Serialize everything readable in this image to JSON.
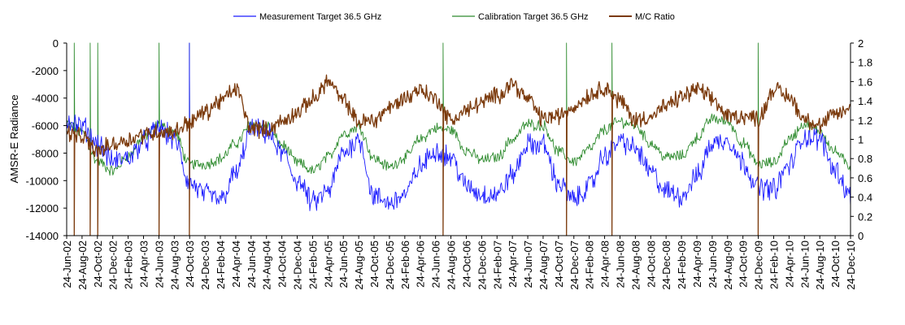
{
  "chart_data": {
    "type": "line",
    "title": "",
    "ylabel": "AMSR-E Radiance",
    "y2label": "",
    "ylim": [
      -14000,
      0
    ],
    "y2lim": [
      0,
      2
    ],
    "yticks": [
      "0",
      "-2000",
      "-4000",
      "-6000",
      "-8000",
      "-10000",
      "-12000",
      "-14000"
    ],
    "y2ticks": [
      "2",
      "1.8",
      "1.6",
      "1.4",
      "1.2",
      "1",
      "0.8",
      "0.6",
      "0.4",
      "0.2",
      "0"
    ],
    "xlim": [
      "2002-06-24",
      "2010-12-24"
    ],
    "xticks": [
      "24-Jun-02",
      "24-Aug-02",
      "24-Oct-02",
      "24-Dec-02",
      "24-Feb-03",
      "24-Apr-03",
      "24-Jun-03",
      "24-Aug-03",
      "24-Oct-03",
      "24-Dec-03",
      "24-Feb-04",
      "24-Apr-04",
      "24-Jun-04",
      "24-Aug-04",
      "24-Oct-04",
      "24-Dec-04",
      "24-Feb-05",
      "24-Apr-05",
      "24-Jun-05",
      "24-Aug-05",
      "24-Oct-05",
      "24-Dec-05",
      "24-Feb-06",
      "24-Apr-06",
      "24-Jun-06",
      "24-Aug-06",
      "24-Oct-06",
      "24-Dec-06",
      "24-Feb-07",
      "24-Apr-07",
      "24-Jun-07",
      "24-Aug-07",
      "24-Oct-07",
      "24-Dec-07",
      "24-Feb-08",
      "24-Apr-08",
      "24-Jun-08",
      "24-Aug-08",
      "24-Oct-08",
      "24-Dec-08",
      "24-Feb-09",
      "24-Apr-09",
      "24-Jun-09",
      "24-Aug-09",
      "24-Oct-09",
      "24-Dec-09",
      "24-Feb-10",
      "24-Apr-10",
      "24-Jun-10",
      "24-Aug-10",
      "24-Oct-10",
      "24-Dec-10"
    ],
    "legend_position": "top-center",
    "series": [
      {
        "name": "Measurement Target 36.5 GHz",
        "axis": "left",
        "color": "#1a1aff",
        "x": [
          "2002-06-24",
          "2002-08-24",
          "2002-10-24",
          "2002-12-24",
          "2003-02-24",
          "2003-04-24",
          "2003-06-24",
          "2003-08-24",
          "2003-10-24",
          "2003-12-24",
          "2004-02-24",
          "2004-04-24",
          "2004-06-24",
          "2004-08-24",
          "2004-10-24",
          "2004-12-24",
          "2005-02-24",
          "2005-04-24",
          "2005-06-24",
          "2005-08-24",
          "2005-10-24",
          "2005-12-24",
          "2006-02-24",
          "2006-04-24",
          "2006-06-24",
          "2006-08-24",
          "2006-10-24",
          "2006-12-24",
          "2007-02-24",
          "2007-04-24",
          "2007-06-24",
          "2007-08-24",
          "2007-10-24",
          "2007-12-24",
          "2008-02-24",
          "2008-04-24",
          "2008-06-24",
          "2008-08-24",
          "2008-10-24",
          "2008-12-24",
          "2009-02-24",
          "2009-04-24",
          "2009-06-24",
          "2009-08-24",
          "2009-10-24",
          "2009-12-24",
          "2010-02-24",
          "2010-04-24",
          "2010-06-24",
          "2010-08-24",
          "2010-10-24",
          "2010-12-24"
        ],
        "values": [
          -5600,
          -6100,
          -7300,
          -8600,
          -8300,
          -7200,
          -6200,
          -7000,
          -10200,
          -11000,
          -11400,
          -9500,
          -6300,
          -6500,
          -8000,
          -10000,
          -11600,
          -10800,
          -8000,
          -7000,
          -11200,
          -11600,
          -11000,
          -9000,
          -7800,
          -8300,
          -10400,
          -11000,
          -11000,
          -9600,
          -7400,
          -7400,
          -10200,
          -11400,
          -10400,
          -8200,
          -7100,
          -7700,
          -9400,
          -10800,
          -11100,
          -9700,
          -7300,
          -7000,
          -8700,
          -10500,
          -10600,
          -8900,
          -6800,
          -7000,
          -9200,
          -11100
        ]
      },
      {
        "name": "Calibration Target 36.5 GHz",
        "axis": "left",
        "color": "#2e8b2e",
        "x": [
          "2002-06-24",
          "2002-08-24",
          "2002-10-24",
          "2002-12-24",
          "2003-02-24",
          "2003-04-24",
          "2003-06-24",
          "2003-08-24",
          "2003-10-24",
          "2003-12-24",
          "2004-02-24",
          "2004-04-24",
          "2004-06-24",
          "2004-08-24",
          "2004-10-24",
          "2004-12-24",
          "2005-02-24",
          "2005-04-24",
          "2005-06-24",
          "2005-08-24",
          "2005-10-24",
          "2005-12-24",
          "2006-02-24",
          "2006-04-24",
          "2006-06-24",
          "2006-08-24",
          "2006-10-24",
          "2006-12-24",
          "2007-02-24",
          "2007-04-24",
          "2007-06-24",
          "2007-08-24",
          "2007-10-24",
          "2007-12-24",
          "2008-02-24",
          "2008-04-24",
          "2008-06-24",
          "2008-08-24",
          "2008-10-24",
          "2008-12-24",
          "2009-02-24",
          "2009-04-24",
          "2009-06-24",
          "2009-08-24",
          "2009-10-24",
          "2009-12-24",
          "2010-02-24",
          "2010-04-24",
          "2010-06-24",
          "2010-08-24",
          "2010-10-24",
          "2010-12-24"
        ],
        "values": [
          -5900,
          -6500,
          -8600,
          -9300,
          -8200,
          -6800,
          -6000,
          -6500,
          -8800,
          -8800,
          -8400,
          -7300,
          -5900,
          -6000,
          -7400,
          -8700,
          -9300,
          -8300,
          -6600,
          -6100,
          -8400,
          -9000,
          -8300,
          -7000,
          -6200,
          -6300,
          -7800,
          -8500,
          -8300,
          -7000,
          -5900,
          -6000,
          -7900,
          -8600,
          -7700,
          -6300,
          -5700,
          -6000,
          -7300,
          -8300,
          -8200,
          -6900,
          -5500,
          -5700,
          -7300,
          -8800,
          -8700,
          -7000,
          -5900,
          -6400,
          -7900,
          -9000
        ]
      },
      {
        "name": "M/C Ratio",
        "axis": "right",
        "color": "#7b3a0c",
        "x": [
          "2002-06-24",
          "2002-08-24",
          "2002-10-24",
          "2002-12-24",
          "2003-02-24",
          "2003-04-24",
          "2003-06-24",
          "2003-08-24",
          "2003-10-24",
          "2003-12-24",
          "2004-02-24",
          "2004-04-24",
          "2004-06-24",
          "2004-08-24",
          "2004-10-24",
          "2004-12-24",
          "2005-02-24",
          "2005-04-24",
          "2005-06-24",
          "2005-08-24",
          "2005-10-24",
          "2005-12-24",
          "2006-02-24",
          "2006-04-24",
          "2006-06-24",
          "2006-08-24",
          "2006-10-24",
          "2006-12-24",
          "2007-02-24",
          "2007-04-24",
          "2007-06-24",
          "2007-08-24",
          "2007-10-24",
          "2007-12-24",
          "2008-02-24",
          "2008-04-24",
          "2008-06-24",
          "2008-08-24",
          "2008-10-24",
          "2008-12-24",
          "2009-02-24",
          "2009-04-24",
          "2009-06-24",
          "2009-08-24",
          "2009-10-24",
          "2009-12-24",
          "2010-02-24",
          "2010-04-24",
          "2010-06-24",
          "2010-08-24",
          "2010-10-24",
          "2010-12-24"
        ],
        "values": [
          1.07,
          1.02,
          0.88,
          0.95,
          1.0,
          1.05,
          1.08,
          1.08,
          1.18,
          1.28,
          1.4,
          1.52,
          1.12,
          1.1,
          1.18,
          1.28,
          1.42,
          1.6,
          1.4,
          1.18,
          1.2,
          1.33,
          1.43,
          1.52,
          1.42,
          1.2,
          1.3,
          1.38,
          1.46,
          1.58,
          1.42,
          1.22,
          1.24,
          1.34,
          1.46,
          1.54,
          1.4,
          1.2,
          1.24,
          1.34,
          1.44,
          1.52,
          1.42,
          1.24,
          1.24,
          1.22,
          1.52,
          1.44,
          1.22,
          1.14,
          1.26,
          1.32
        ]
      }
    ],
    "spikes": [
      {
        "series": 0,
        "x": "2003-10-24",
        "value": 0
      },
      {
        "series": 1,
        "x": "2002-07-24",
        "value": 0
      },
      {
        "series": 1,
        "x": "2002-09-24",
        "value": 0
      },
      {
        "series": 1,
        "x": "2002-10-24",
        "value": 0
      },
      {
        "series": 1,
        "x": "2003-06-24",
        "value": 0
      },
      {
        "series": 1,
        "x": "2003-10-24",
        "value": 0
      },
      {
        "series": 1,
        "x": "2006-07-24",
        "value": 0
      },
      {
        "series": 1,
        "x": "2007-11-24",
        "value": 0
      },
      {
        "series": 1,
        "x": "2008-05-24",
        "value": 0
      },
      {
        "series": 1,
        "x": "2009-12-24",
        "value": 0
      },
      {
        "series": 2,
        "x": "2002-07-24",
        "value": 0
      },
      {
        "series": 2,
        "x": "2002-09-24",
        "value": 0
      },
      {
        "series": 2,
        "x": "2002-10-24",
        "value": 0
      },
      {
        "series": 2,
        "x": "2003-06-24",
        "value": 0
      },
      {
        "series": 2,
        "x": "2003-10-24",
        "value": 0
      },
      {
        "series": 2,
        "x": "2006-07-24",
        "value": 0
      },
      {
        "series": 2,
        "x": "2007-11-24",
        "value": 0
      },
      {
        "series": 2,
        "x": "2008-05-24",
        "value": 0
      },
      {
        "series": 2,
        "x": "2009-12-24",
        "value": 0
      }
    ]
  }
}
